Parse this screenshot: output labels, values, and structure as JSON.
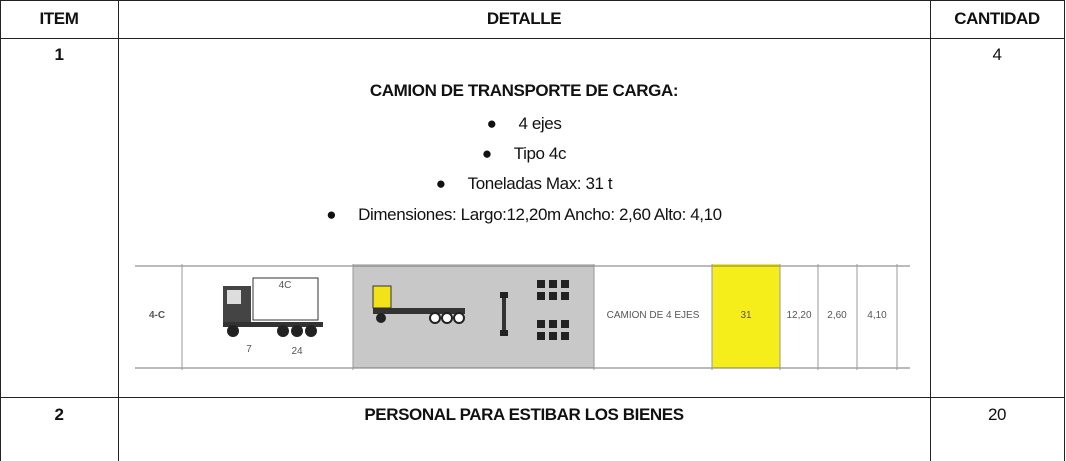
{
  "table": {
    "headers": [
      "ITEM",
      "DETALLE",
      "CANTIDAD"
    ],
    "rows": [
      {
        "item": "1",
        "detalle": {
          "title": "CAMION DE TRANSPORTE DE CARGA:",
          "bullets": [
            "4 ejes",
            "Tipo 4c",
            "Toneladas Max: 31 t",
            "Dimensiones: Largo:12,20m Ancho: 2,60 Alto: 4,10"
          ],
          "figure": {
            "type_label": "4-C",
            "truck_label": "4C",
            "axle_labels": [
              "7",
              "24"
            ],
            "description": "CAMION DE 4 EJES",
            "tonnage": "31",
            "length": "12,20",
            "width": "2,60",
            "height": "4,10"
          }
        },
        "cantidad": "4"
      },
      {
        "item": "2",
        "detalle": {
          "title": "PERSONAL PARA ESTIBAR LOS BIENES"
        },
        "cantidad": "20"
      }
    ]
  }
}
